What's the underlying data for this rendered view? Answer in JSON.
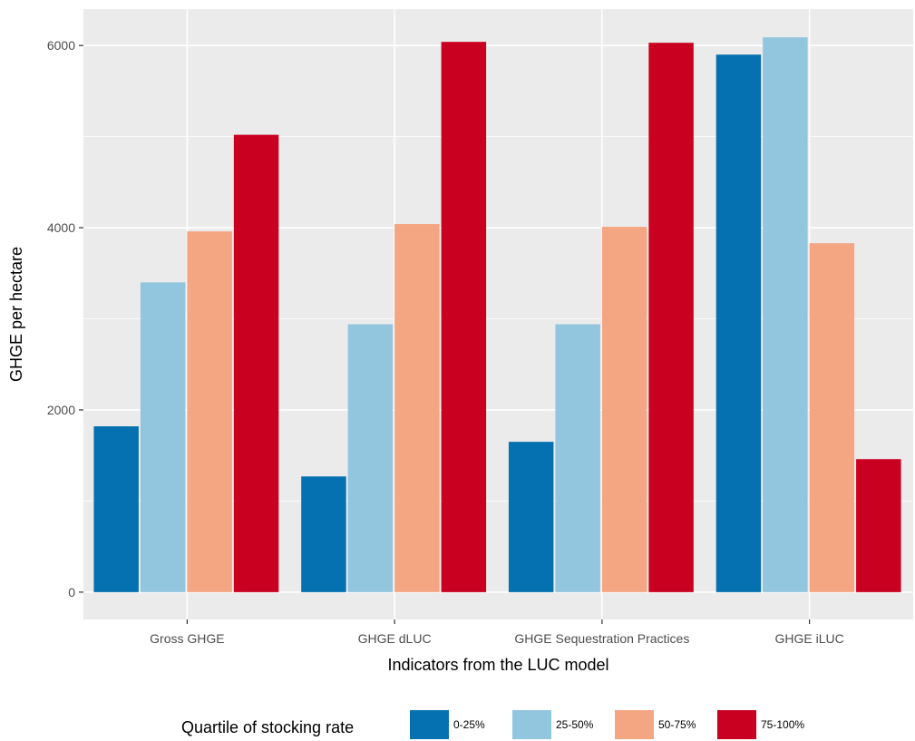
{
  "chart_data": {
    "type": "bar",
    "xlabel": "Indicators from the LUC model",
    "ylabel": "GHGE per hectare",
    "categories": [
      "Gross GHGE",
      "GHGE dLUC",
      "GHGE Sequestration Practices",
      "GHGE iLUC"
    ],
    "ylim": [
      -300,
      6400
    ],
    "yticks": [
      0,
      2000,
      4000,
      6000
    ],
    "grid": true,
    "background": "#ebebeb",
    "legend": {
      "title": "Quartile of stocking rate",
      "position": "bottom"
    },
    "series": [
      {
        "name": "0-25%",
        "color": "#0571b0",
        "values": [
          1820,
          1270,
          1650,
          5900
        ]
      },
      {
        "name": "25-50%",
        "color": "#92c5de",
        "values": [
          3400,
          2940,
          2940,
          6090
        ]
      },
      {
        "name": "50-75%",
        "color": "#f4a582",
        "values": [
          3960,
          4040,
          4010,
          3830
        ]
      },
      {
        "name": "75-100%",
        "color": "#ca0020",
        "values": [
          5020,
          6040,
          6030,
          1460
        ]
      }
    ]
  }
}
